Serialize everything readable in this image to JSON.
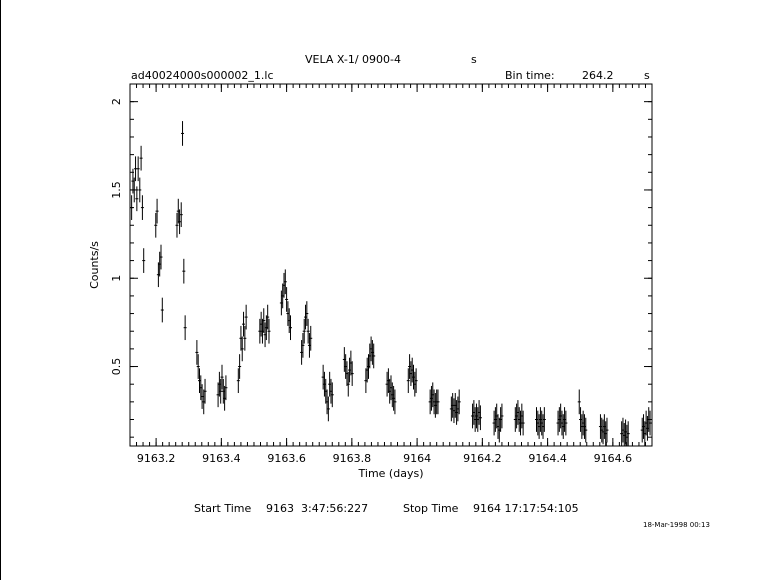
{
  "header": {
    "title": "VELA X-1/ 0900-4",
    "title_unit": "s",
    "filename": "ad40024000s000002_1.lc",
    "bin_label": "Bin time:",
    "bin_value": "264.2",
    "bin_unit": "s"
  },
  "footer": {
    "start_label": "Start Time",
    "start_value": "9163  3:47:56:227",
    "stop_label": "Stop Time",
    "stop_value": "9164 17:17:54:105",
    "timestamp": "18-Mar-1998 00:13"
  },
  "chart_data": {
    "type": "scatter",
    "title": "VELA X-1/ 0900-4",
    "xlabel": "Time (days)",
    "ylabel": "Counts/s",
    "xlim": [
      9163.12,
      9164.72
    ],
    "ylim": [
      0.05,
      2.1
    ],
    "xticks": [
      9163.2,
      9163.4,
      9163.6,
      9163.8,
      9164,
      9164.2,
      9164.4,
      9164.6
    ],
    "xtick_labels": [
      "9163.2",
      "9163.4",
      "9163.6",
      "9163.8",
      "9164",
      "9164.2",
      "9164.4",
      "9164.6"
    ],
    "yticks": [
      0.5,
      1,
      1.5,
      2
    ],
    "ytick_labels": [
      "0.5",
      "1",
      "1.5",
      "2"
    ],
    "grid": false,
    "error_bars": true,
    "series": [
      {
        "x": [
          9163.125,
          9163.129,
          9163.133,
          9163.137,
          9163.141,
          9163.145,
          9163.15,
          9163.154,
          9163.158,
          9163.162,
          9163.199,
          9163.203,
          9163.207,
          9163.211,
          9163.215,
          9163.219,
          9163.264,
          9163.268,
          9163.272,
          9163.277,
          9163.281,
          9163.285,
          9163.289,
          9163.325,
          9163.329,
          9163.333,
          9163.337,
          9163.341,
          9163.346,
          9163.35,
          9163.39,
          9163.394,
          9163.398,
          9163.402,
          9163.406,
          9163.41,
          9163.414,
          9163.452,
          9163.456,
          9163.46,
          9163.464,
          9163.468,
          9163.472,
          9163.476,
          9163.518,
          9163.522,
          9163.526,
          9163.53,
          9163.534,
          9163.538,
          9163.542,
          9163.546,
          9163.584,
          9163.588,
          9163.592,
          9163.596,
          9163.6,
          9163.604,
          9163.608,
          9163.612,
          9163.646,
          9163.65,
          9163.654,
          9163.658,
          9163.662,
          9163.666,
          9163.67,
          9163.674,
          9163.712,
          9163.716,
          9163.72,
          9163.724,
          9163.728,
          9163.732,
          9163.736,
          9163.74,
          9163.777,
          9163.781,
          9163.785,
          9163.789,
          9163.793,
          9163.797,
          9163.801,
          9163.843,
          9163.847,
          9163.851,
          9163.855,
          9163.859,
          9163.863,
          9163.867,
          9163.908,
          9163.912,
          9163.916,
          9163.92,
          9163.924,
          9163.928,
          9163.932,
          9163.973,
          9163.977,
          9163.981,
          9163.985,
          9163.989,
          9163.993,
          9163.997,
          9164.04,
          9164.044,
          9164.048,
          9164.052,
          9164.056,
          9164.06,
          9164.064,
          9164.105,
          9164.109,
          9164.113,
          9164.117,
          9164.121,
          9164.125,
          9164.129,
          9164.17,
          9164.174,
          9164.178,
          9164.182,
          9164.186,
          9164.19,
          9164.194,
          9164.236,
          9164.24,
          9164.244,
          9164.248,
          9164.252,
          9164.256,
          9164.26,
          9164.301,
          9164.305,
          9164.309,
          9164.313,
          9164.317,
          9164.321,
          9164.325,
          9164.366,
          9164.37,
          9164.374,
          9164.378,
          9164.382,
          9164.386,
          9164.39,
          9164.432,
          9164.436,
          9164.44,
          9164.444,
          9164.448,
          9164.452,
          9164.456,
          9164.497,
          9164.501,
          9164.505,
          9164.509,
          9164.513,
          9164.517,
          9164.562,
          9164.566,
          9164.57,
          9164.574,
          9164.578,
          9164.582,
          9164.627,
          9164.631,
          9164.635,
          9164.639,
          9164.643,
          9164.647,
          9164.69,
          9164.694,
          9164.698,
          9164.702,
          9164.706,
          9164.71,
          9164.714
        ],
        "y": [
          1.4,
          1.55,
          1.5,
          1.62,
          1.45,
          1.62,
          1.5,
          1.68,
          1.4,
          1.1,
          1.3,
          1.38,
          1.02,
          1.08,
          1.12,
          0.82,
          1.3,
          1.38,
          1.32,
          1.36,
          1.82,
          1.04,
          0.72,
          0.58,
          0.5,
          0.42,
          0.38,
          0.33,
          0.3,
          0.36,
          0.34,
          0.4,
          0.36,
          0.44,
          0.36,
          0.32,
          0.38,
          0.42,
          0.5,
          0.66,
          0.6,
          0.74,
          0.66,
          0.78,
          0.7,
          0.74,
          0.7,
          0.76,
          0.68,
          0.72,
          0.78,
          0.7,
          0.86,
          0.9,
          0.96,
          0.98,
          0.88,
          0.8,
          0.76,
          0.72,
          0.58,
          0.62,
          0.7,
          0.78,
          0.8,
          0.7,
          0.62,
          0.66,
          0.44,
          0.4,
          0.36,
          0.3,
          0.26,
          0.4,
          0.36,
          0.34,
          0.54,
          0.5,
          0.46,
          0.4,
          0.48,
          0.52,
          0.46,
          0.42,
          0.48,
          0.5,
          0.56,
          0.6,
          0.58,
          0.56,
          0.4,
          0.42,
          0.36,
          0.38,
          0.34,
          0.32,
          0.3,
          0.42,
          0.5,
          0.46,
          0.48,
          0.44,
          0.4,
          0.42,
          0.3,
          0.32,
          0.34,
          0.3,
          0.28,
          0.3,
          0.3,
          0.26,
          0.28,
          0.25,
          0.28,
          0.24,
          0.26,
          0.3,
          0.22,
          0.24,
          0.2,
          0.22,
          0.2,
          0.24,
          0.21,
          0.18,
          0.2,
          0.22,
          0.16,
          0.14,
          0.2,
          0.22,
          0.2,
          0.22,
          0.24,
          0.2,
          0.18,
          0.22,
          0.18,
          0.2,
          0.18,
          0.16,
          0.2,
          0.18,
          0.16,
          0.2,
          0.18,
          0.2,
          0.22,
          0.18,
          0.16,
          0.2,
          0.18,
          0.3,
          0.2,
          0.16,
          0.18,
          0.16,
          0.14,
          0.16,
          0.14,
          0.13,
          0.16,
          0.12,
          0.14,
          0.12,
          0.14,
          0.11,
          0.13,
          0.1,
          0.12,
          0.14,
          0.16,
          0.12,
          0.18,
          0.15,
          0.2,
          0.18
        ],
        "err": 0.07
      }
    ]
  }
}
